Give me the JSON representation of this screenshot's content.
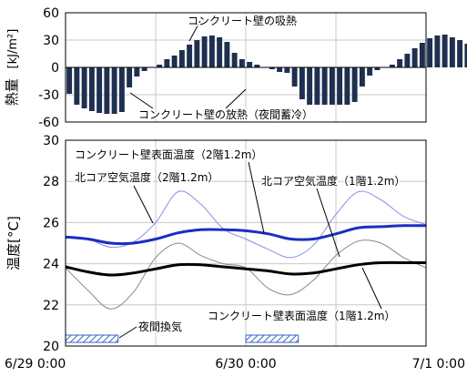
{
  "chart_data": [
    {
      "type": "bar",
      "ylabel": "熱量 [kJ/m²]",
      "ylabel_main": "熱量",
      "ylabel_unit": "[kJ/m²]",
      "ylim": [
        -60,
        60
      ],
      "yticks": [
        -60,
        -30,
        0,
        30,
        60
      ],
      "bar_color": "#1f2f4f",
      "time_step_hours": 1,
      "start_hour": 0,
      "values": [
        -29,
        -41,
        -45,
        -48,
        -50,
        -51,
        -51,
        -49,
        -22,
        -10,
        -4,
        0,
        3,
        9,
        13,
        19,
        25,
        30,
        34,
        35,
        33,
        28,
        16,
        9,
        6,
        3,
        0,
        -2,
        -5,
        -6,
        -21,
        -35,
        -41,
        -41,
        -41,
        -41,
        -41,
        -41,
        -38,
        -21,
        -9,
        -3,
        0,
        3,
        9,
        15,
        21,
        27,
        32,
        35,
        36,
        33,
        30,
        26,
        19,
        10,
        5,
        2,
        0
      ],
      "annotations": [
        "コンクリート壁の吸熱",
        "コンクリート壁の放熱（夜間蓄冷）"
      ]
    },
    {
      "type": "line",
      "ylabel": "温度[°C]",
      "ylim": [
        20,
        30
      ],
      "yticks": [
        20,
        22,
        24,
        26,
        28,
        30
      ],
      "xticks": [
        "6/29 0:00",
        "6/30 0:00",
        "7/1 0:00"
      ],
      "x_hours": [
        0,
        3,
        6,
        9,
        12,
        15,
        18,
        21,
        24,
        27,
        30,
        33,
        36,
        39,
        42,
        45,
        48
      ],
      "series": [
        {
          "name": "コンクリート壁表面温度（2階1.2m）",
          "color": "#1b2fbf",
          "width": 3,
          "values": [
            25.3,
            25.2,
            25.0,
            25.0,
            25.2,
            25.5,
            25.65,
            25.65,
            25.6,
            25.45,
            25.2,
            25.2,
            25.45,
            25.75,
            25.8,
            25.85,
            25.85
          ]
        },
        {
          "name": "北コア空気温度（2階1.2m）",
          "color": "#8890e0",
          "width": 1,
          "values": [
            25.3,
            25.2,
            24.8,
            25.05,
            26.0,
            27.5,
            26.9,
            25.7,
            25.2,
            24.7,
            24.3,
            24.9,
            26.4,
            27.5,
            27.1,
            26.3,
            25.9
          ]
        },
        {
          "name": "コンクリート壁表面温度（1階1.2m）",
          "color": "#000000",
          "width": 3,
          "values": [
            23.85,
            23.6,
            23.45,
            23.55,
            23.75,
            23.95,
            23.95,
            23.85,
            23.75,
            23.65,
            23.5,
            23.55,
            23.75,
            23.95,
            24.05,
            24.05,
            24.05
          ]
        },
        {
          "name": "北コア空気温度（1階1.2m）",
          "color": "#888888",
          "width": 1,
          "values": [
            23.8,
            22.7,
            21.8,
            22.6,
            24.3,
            25.0,
            24.4,
            24.0,
            23.8,
            22.8,
            22.5,
            23.2,
            24.4,
            25.1,
            25.0,
            24.3,
            23.8
          ]
        }
      ],
      "ventilation_label": "夜間換気",
      "ventilation_periods": [
        [
          0,
          7
        ],
        [
          24,
          31
        ]
      ],
      "labels": {
        "surface_2f": "コンクリート壁表面温度（2階1.2m）",
        "air_2f": "北コア空気温度（2階1.2m）",
        "air_1f": "北コア空気温度（1階1.2m）",
        "surface_1f": "コンクリート壁表面温度（1階1.2m）"
      }
    }
  ]
}
